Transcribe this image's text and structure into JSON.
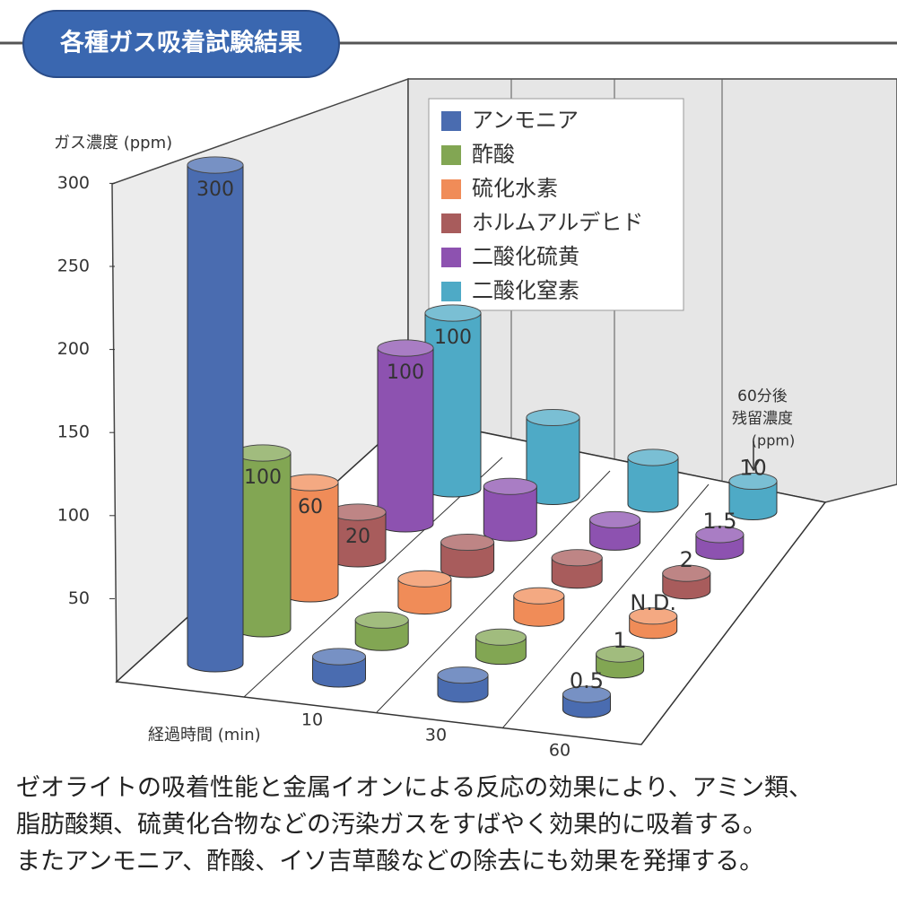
{
  "chart_data": {
    "type": "bar3d",
    "title": "各種ガス吸着試験結果",
    "ylabel": "ガス濃度 (ppm)",
    "xlabel": "経過時間 (min)",
    "annotation": [
      "60分後",
      "残留濃度",
      "(ppm)"
    ],
    "categories": [
      null,
      "10",
      "30",
      "60"
    ],
    "ylim": [
      0,
      300
    ],
    "yticks": [
      50,
      100,
      150,
      200,
      250,
      300
    ],
    "legend": "top-right",
    "series": [
      {
        "name": "アンモニア",
        "color": "#4a6cb0",
        "values": [
          300,
          5,
          3,
          0.5
        ]
      },
      {
        "name": "酢酸",
        "color": "#82a653",
        "values": [
          100,
          5,
          3,
          1
        ]
      },
      {
        "name": "硫化水素",
        "color": "#f08c58",
        "values": [
          60,
          8,
          5,
          0
        ],
        "value_labels": [
          null,
          null,
          null,
          "N.D."
        ]
      },
      {
        "name": "ホルムアルデヒド",
        "color": "#a85c5c",
        "values": [
          20,
          8,
          5,
          2
        ]
      },
      {
        "name": "二酸化硫黄",
        "color": "#8d52b0",
        "values": [
          100,
          20,
          5,
          1.5
        ]
      },
      {
        "name": "二酸化窒素",
        "color": "#4eaac6",
        "values": [
          100,
          40,
          20,
          10
        ]
      }
    ],
    "description": [
      "ゼオライトの吸着性能と金属イオンによる反応の効果により、アミン類、",
      "脂肪酸類、硫黄化合物などの汚染ガスをすばやく効果的に吸着する。",
      "またアンモニア、酢酸、イソ吉草酸などの除去にも効果を発揮する。"
    ]
  }
}
